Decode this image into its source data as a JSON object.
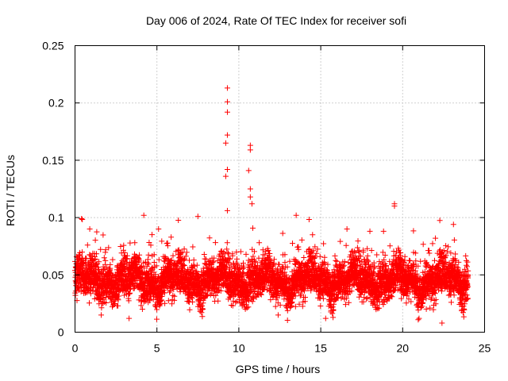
{
  "chart_data": {
    "type": "scatter",
    "title": "Day 006 of 2024, Rate Of TEC Index for receiver sofi",
    "xlabel": "GPS time / hours",
    "ylabel": "ROTI / TECUs",
    "xlim": [
      0,
      25
    ],
    "ylim": [
      0,
      0.25
    ],
    "x_ticks": [
      0,
      5,
      10,
      15,
      20,
      25
    ],
    "x_tick_labels": [
      "0",
      "5",
      "10",
      "15",
      "20",
      "25"
    ],
    "y_ticks": [
      0,
      0.05,
      0.1,
      0.15,
      0.2,
      0.25
    ],
    "y_tick_labels": [
      "0",
      "0.05",
      "0.1",
      "0.15",
      "0.2",
      "0.25"
    ],
    "grid": true,
    "marker": "+",
    "series_color": "#ff0000",
    "data_x_range": [
      0,
      24
    ],
    "typical_band": [
      0.02,
      0.07
    ],
    "sample_points": [
      {
        "x": 9.3,
        "y": 0.213
      },
      {
        "x": 9.3,
        "y": 0.201
      },
      {
        "x": 9.3,
        "y": 0.192
      },
      {
        "x": 9.3,
        "y": 0.172
      },
      {
        "x": 9.2,
        "y": 0.165
      },
      {
        "x": 9.3,
        "y": 0.142
      },
      {
        "x": 9.2,
        "y": 0.136
      },
      {
        "x": 9.3,
        "y": 0.106
      },
      {
        "x": 10.7,
        "y": 0.163
      },
      {
        "x": 10.7,
        "y": 0.159
      },
      {
        "x": 10.6,
        "y": 0.141
      },
      {
        "x": 10.7,
        "y": 0.125
      },
      {
        "x": 10.7,
        "y": 0.118
      },
      {
        "x": 10.8,
        "y": 0.112
      },
      {
        "x": 19.5,
        "y": 0.112
      },
      {
        "x": 19.5,
        "y": 0.11
      },
      {
        "x": 4.2,
        "y": 0.102
      },
      {
        "x": 13.5,
        "y": 0.102
      },
      {
        "x": 7.5,
        "y": 0.101
      },
      {
        "x": 0.4,
        "y": 0.099
      },
      {
        "x": 23.1,
        "y": 0.094
      },
      {
        "x": 22.0,
        "y": 0.082
      },
      {
        "x": 0.9,
        "y": 0.09
      },
      {
        "x": 5.1,
        "y": 0.09
      },
      {
        "x": 16.6,
        "y": 0.09
      },
      {
        "x": 14.5,
        "y": 0.085
      },
      {
        "x": 18.0,
        "y": 0.088
      },
      {
        "x": 1.6,
        "y": 0.015
      },
      {
        "x": 3.3,
        "y": 0.012
      },
      {
        "x": 21.0,
        "y": 0.012
      },
      {
        "x": 22.4,
        "y": 0.008
      },
      {
        "x": 15.3,
        "y": 0.012
      },
      {
        "x": 12.4,
        "y": 0.015
      }
    ]
  }
}
